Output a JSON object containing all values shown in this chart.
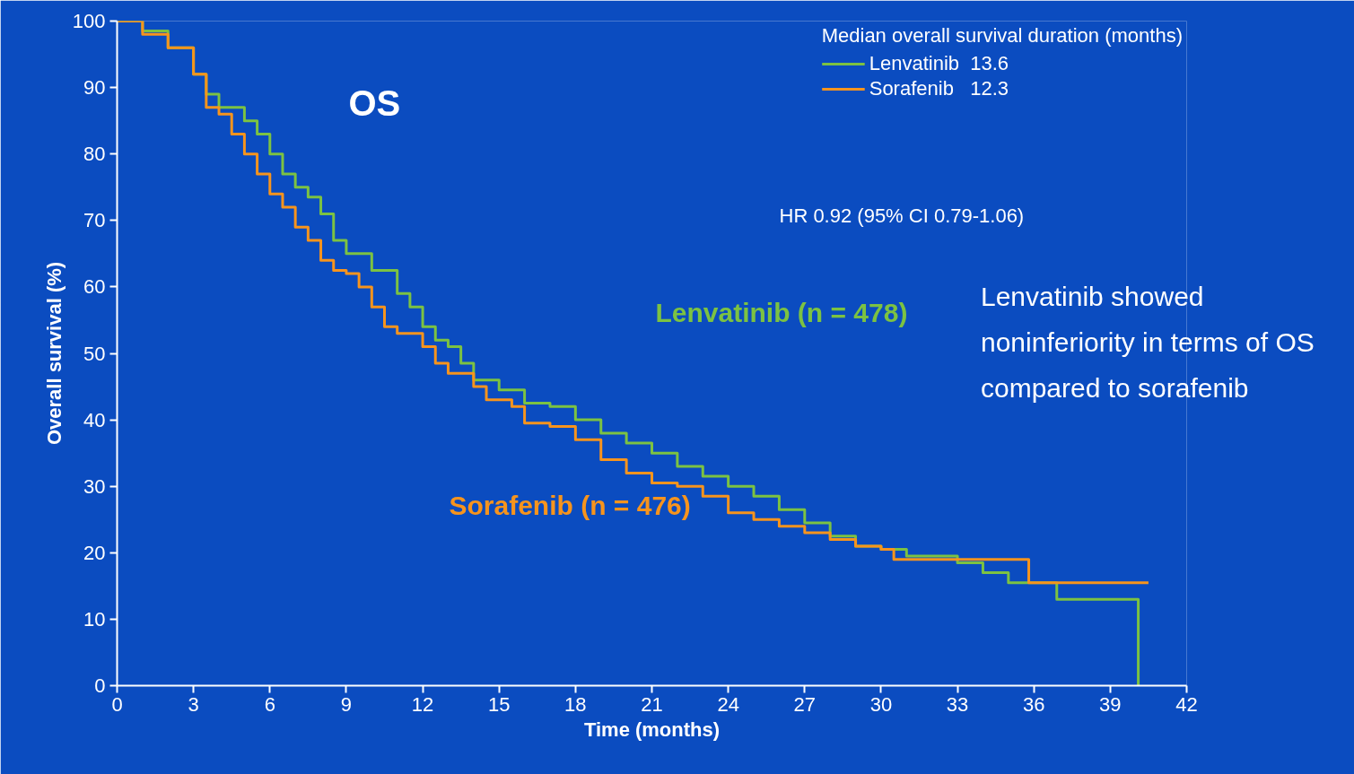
{
  "chart_data": {
    "type": "step",
    "xlabel": "Time (months)",
    "ylabel": "Overall survival (%)",
    "legend_title": "Median overall survival duration (months)",
    "legend": "top right",
    "grid": false,
    "line_style": "solid",
    "xlim": [
      0,
      42
    ],
    "xticks": [
      0,
      3,
      6,
      9,
      12,
      15,
      18,
      21,
      24,
      27,
      30,
      33,
      36,
      39,
      42
    ],
    "ylim": [
      0,
      100
    ],
    "yticks": [
      0,
      10,
      20,
      30,
      40,
      50,
      60,
      70,
      80,
      90,
      100
    ],
    "series": [
      {
        "name": "Lenvatinib  13.6",
        "color": "#7cc242",
        "x": [
          0,
          1,
          2,
          3,
          3.5,
          4,
          5,
          5.5,
          6,
          6.5,
          7,
          7.5,
          8,
          8.5,
          9,
          10,
          11,
          11.5,
          12,
          12.5,
          13,
          13.5,
          14,
          15,
          16,
          17,
          18,
          19,
          20,
          21,
          22,
          23,
          24,
          25,
          26,
          27,
          28,
          29,
          30,
          31,
          32,
          33,
          34,
          35,
          36,
          36.9,
          40.1,
          40.1
        ],
        "values": [
          100,
          98.5,
          96,
          92,
          89,
          87,
          85,
          83,
          80,
          77,
          75,
          73.5,
          71,
          67,
          65,
          62.5,
          59,
          57,
          54,
          52,
          51,
          48.5,
          46,
          44.5,
          42.5,
          42,
          40,
          38,
          36.5,
          35,
          33,
          31.5,
          30,
          28.5,
          26.5,
          24.5,
          22.5,
          21,
          20.5,
          19.5,
          19.5,
          18.5,
          17,
          15.5,
          15.5,
          13,
          13,
          0
        ]
      },
      {
        "name": "Sorafenib   12.3",
        "color": "#f7941d",
        "x": [
          0,
          1,
          2,
          3,
          3.5,
          4,
          4.5,
          5,
          5.5,
          6,
          6.5,
          7,
          7.5,
          8,
          8.5,
          9,
          9.5,
          10,
          10.5,
          11,
          12,
          12.5,
          13,
          14,
          14.5,
          15.5,
          16,
          17,
          18,
          19,
          20,
          21,
          22,
          23,
          24,
          25,
          26,
          27,
          28,
          29,
          30,
          30.5,
          31,
          33,
          35.8,
          40.5
        ],
        "values": [
          100,
          98,
          96,
          92,
          87,
          86,
          83,
          80,
          77,
          74,
          72,
          69,
          67,
          64,
          62.5,
          62,
          60,
          57,
          54,
          53,
          51,
          48.5,
          47,
          45,
          43,
          42,
          39.5,
          39,
          37,
          34,
          32,
          30.5,
          30,
          28.5,
          26,
          25,
          24,
          23,
          22,
          21,
          20.5,
          19,
          19,
          19,
          15.5,
          15.5
        ]
      }
    ],
    "annotations": [
      "OS",
      "HR 0.92 (95% CI 0.79-1.06)",
      "Lenvatinib showed noninferiority in terms of OS compared to sorafenib",
      "Lenvatinib (n = 478)",
      "Sorafenib (n = 476)"
    ]
  }
}
